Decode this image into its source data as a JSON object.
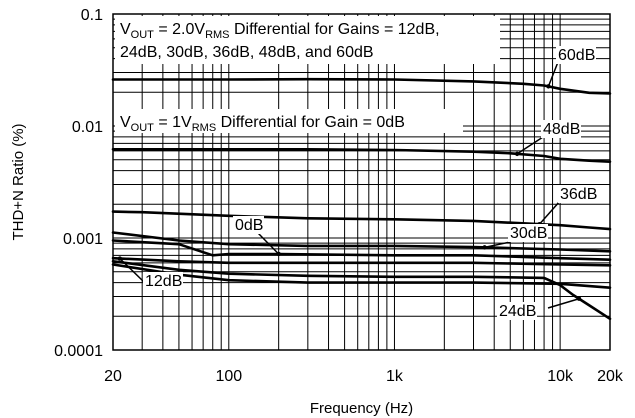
{
  "chart_data": {
    "type": "line",
    "title": "",
    "xlabel": "Frequency (Hz)",
    "ylabel": "THD+N Ratio (%)",
    "x_scale": "log",
    "y_scale": "log",
    "xlim": [
      20,
      20000
    ],
    "ylim": [
      0.0001,
      0.1
    ],
    "grid": true,
    "x_ticks": [
      {
        "value": 20,
        "label": "20"
      },
      {
        "value": 100,
        "label": "100"
      },
      {
        "value": 1000,
        "label": "1k"
      },
      {
        "value": 10000,
        "label": "10k"
      },
      {
        "value": 20000,
        "label": "20k"
      }
    ],
    "y_ticks": [
      {
        "value": 0.1,
        "label": "0.1"
      },
      {
        "value": 0.01,
        "label": "0.01"
      },
      {
        "value": 0.001,
        "label": "0.001"
      },
      {
        "value": 0.0001,
        "label": "0.0001"
      }
    ],
    "annotations": {
      "top_line1": {
        "pre": "V",
        "sub1": "OUT",
        "mid": " = 2.0V",
        "sub2": "RMS",
        "post": " Differential for Gains = 12dB,"
      },
      "top_line2": "24dB, 30dB, 36dB, 48dB, and 60dB",
      "mid_line": {
        "pre": "V",
        "sub1": "OUT",
        "mid": " = 1V",
        "sub2": "RMS",
        "post": " Differential for Gain = 0dB"
      }
    },
    "series": [
      {
        "name": "60dB",
        "color": "#000000",
        "x": [
          20,
          50,
          100,
          300,
          1000,
          3000,
          6000,
          8000,
          10000,
          15000,
          20000
        ],
        "y": [
          0.026,
          0.026,
          0.026,
          0.0262,
          0.026,
          0.025,
          0.0238,
          0.023,
          0.0215,
          0.0198,
          0.0195
        ]
      },
      {
        "name": "48dB",
        "color": "#000000",
        "x": [
          20,
          50,
          100,
          300,
          1000,
          3000,
          5000,
          8000,
          10000,
          15000,
          20000
        ],
        "y": [
          0.0062,
          0.0062,
          0.0062,
          0.0062,
          0.0061,
          0.0059,
          0.0057,
          0.0054,
          0.0051,
          0.0049,
          0.0048
        ]
      },
      {
        "name": "36dB",
        "color": "#000000",
        "x": [
          20,
          30,
          100,
          300,
          1000,
          3000,
          10000,
          15000,
          20000
        ],
        "y": [
          0.00172,
          0.0017,
          0.00158,
          0.0015,
          0.00147,
          0.00142,
          0.0013,
          0.00124,
          0.0012
        ]
      },
      {
        "name": "30dB",
        "color": "#000000",
        "x": [
          20,
          50,
          100,
          300,
          1000,
          3000,
          10000,
          20000
        ],
        "y": [
          0.00112,
          0.00095,
          0.00088,
          0.00085,
          0.00085,
          0.00083,
          0.00079,
          0.00076
        ]
      },
      {
        "name": "0dB",
        "color": "#000000",
        "x": [
          20,
          50,
          80,
          100,
          200,
          1000,
          3000,
          10000,
          20000
        ],
        "y": [
          0.00095,
          0.00088,
          0.0007,
          0.00072,
          0.00072,
          0.0007,
          0.0007,
          0.00066,
          0.00064
        ]
      },
      {
        "name": "12dB",
        "color": "#000000",
        "x": [
          20,
          50,
          100,
          300,
          1000,
          3000,
          10000,
          20000
        ],
        "y": [
          0.00066,
          0.00062,
          0.0006,
          0.0006,
          0.0006,
          0.0006,
          0.00058,
          0.00057
        ]
      },
      {
        "name": "24dB",
        "color": "#000000",
        "x": [
          20,
          50,
          100,
          300,
          1000,
          3000,
          8000,
          10000,
          12000,
          15000,
          20000
        ],
        "y": [
          0.00062,
          0.00052,
          0.00048,
          0.00046,
          0.00045,
          0.00045,
          0.00044,
          0.00038,
          0.00031,
          0.00025,
          0.00019
        ]
      },
      {
        "name": "",
        "color": "#000000",
        "x": [
          20,
          50,
          100,
          300,
          1000,
          3000,
          10000,
          20000
        ],
        "y": [
          0.00058,
          0.00047,
          0.00042,
          0.0004,
          0.0004,
          0.0004,
          0.00039,
          0.00036
        ]
      }
    ],
    "callouts": [
      {
        "label": "60dB",
        "series": "60dB"
      },
      {
        "label": "48dB",
        "series": "48dB"
      },
      {
        "label": "36dB",
        "series": "36dB"
      },
      {
        "label": "30dB",
        "series": "30dB"
      },
      {
        "label": "0dB",
        "series": "0dB"
      },
      {
        "label": "12dB",
        "series": "12dB"
      },
      {
        "label": "24dB",
        "series": "24dB"
      }
    ]
  }
}
